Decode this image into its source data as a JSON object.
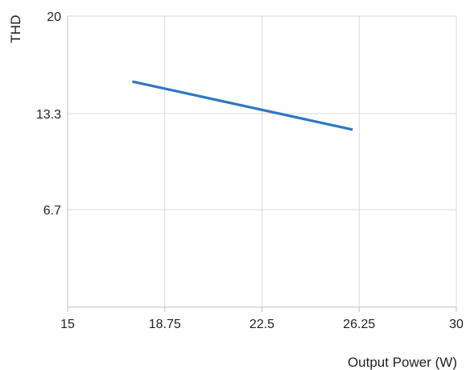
{
  "chart_data": {
    "type": "line",
    "title": "",
    "xlabel": "Output Power (W)",
    "ylabel": "THD",
    "xlim": [
      15,
      30
    ],
    "ylim": [
      0,
      20
    ],
    "x_ticks": [
      "15",
      "18.75",
      "22.5",
      "26.25",
      "30"
    ],
    "y_ticks": [
      "6.7",
      "13.3",
      "20"
    ],
    "grid": true,
    "series": [
      {
        "color": "#2f78c0",
        "x": [
          17.5,
          26.0
        ],
        "y": [
          15.5,
          12.2
        ]
      }
    ]
  },
  "colors": {
    "grid": "#d9d9d9",
    "axis": "#bfbfbf",
    "text": "#222222"
  }
}
